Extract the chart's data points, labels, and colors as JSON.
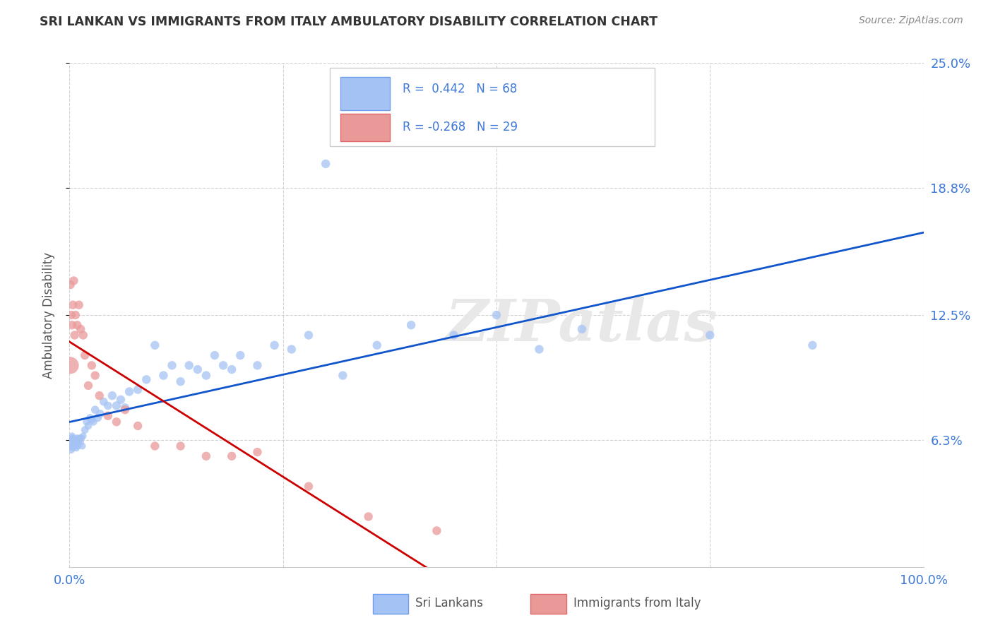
{
  "title": "SRI LANKAN VS IMMIGRANTS FROM ITALY AMBULATORY DISABILITY CORRELATION CHART",
  "source": "Source: ZipAtlas.com",
  "ylabel": "Ambulatory Disability",
  "xlim": [
    0,
    1.0
  ],
  "ylim": [
    0,
    0.25
  ],
  "yticks": [
    0.063,
    0.125,
    0.188,
    0.25
  ],
  "ytick_labels": [
    "6.3%",
    "12.5%",
    "18.8%",
    "25.0%"
  ],
  "background_color": "#ffffff",
  "watermark_text": "ZIPatlas",
  "sri_lanka": {
    "name": "Sri Lankans",
    "color": "#a4c2f4",
    "edge_color": "#6d9eeb",
    "line_color": "#1155cc",
    "R": 0.442,
    "N": 68,
    "x": [
      0.001,
      0.001,
      0.002,
      0.002,
      0.003,
      0.003,
      0.004,
      0.004,
      0.005,
      0.005,
      0.006,
      0.006,
      0.007,
      0.007,
      0.008,
      0.008,
      0.009,
      0.01,
      0.01,
      0.011,
      0.012,
      0.013,
      0.014,
      0.015,
      0.016,
      0.018,
      0.02,
      0.022,
      0.024,
      0.026,
      0.028,
      0.03,
      0.033,
      0.036,
      0.04,
      0.045,
      0.05,
      0.055,
      0.06,
      0.065,
      0.07,
      0.08,
      0.09,
      0.1,
      0.11,
      0.12,
      0.13,
      0.14,
      0.15,
      0.16,
      0.17,
      0.18,
      0.19,
      0.2,
      0.22,
      0.24,
      0.26,
      0.28,
      0.3,
      0.32,
      0.36,
      0.4,
      0.45,
      0.5,
      0.55,
      0.6,
      0.75,
      0.87
    ],
    "y": [
      0.063,
      0.06,
      0.064,
      0.058,
      0.065,
      0.06,
      0.063,
      0.059,
      0.062,
      0.064,
      0.061,
      0.063,
      0.06,
      0.062,
      0.063,
      0.059,
      0.064,
      0.062,
      0.06,
      0.063,
      0.064,
      0.062,
      0.064,
      0.06,
      0.065,
      0.068,
      0.072,
      0.07,
      0.074,
      0.073,
      0.072,
      0.078,
      0.074,
      0.076,
      0.082,
      0.08,
      0.085,
      0.08,
      0.083,
      0.079,
      0.087,
      0.088,
      0.093,
      0.11,
      0.095,
      0.1,
      0.092,
      0.1,
      0.098,
      0.095,
      0.105,
      0.1,
      0.098,
      0.105,
      0.1,
      0.11,
      0.108,
      0.115,
      0.2,
      0.095,
      0.11,
      0.12,
      0.115,
      0.125,
      0.108,
      0.118,
      0.115,
      0.11
    ],
    "sizes": [
      50,
      50,
      50,
      50,
      50,
      50,
      50,
      50,
      50,
      50,
      50,
      50,
      50,
      50,
      50,
      50,
      50,
      50,
      50,
      50,
      50,
      50,
      50,
      50,
      50,
      60,
      60,
      60,
      60,
      60,
      60,
      70,
      70,
      70,
      70,
      70,
      80,
      80,
      80,
      80,
      80,
      80,
      80,
      80,
      80,
      80,
      80,
      80,
      80,
      80,
      80,
      80,
      80,
      80,
      80,
      80,
      80,
      80,
      80,
      80,
      80,
      80,
      80,
      80,
      80,
      80,
      80,
      80
    ]
  },
  "italy": {
    "name": "Immigrants from Italy",
    "color": "#ea9999",
    "edge_color": "#e06666",
    "line_color": "#cc0000",
    "R": -0.268,
    "N": 29,
    "x": [
      0.001,
      0.001,
      0.002,
      0.003,
      0.004,
      0.005,
      0.006,
      0.007,
      0.009,
      0.011,
      0.013,
      0.016,
      0.018,
      0.022,
      0.026,
      0.03,
      0.035,
      0.045,
      0.055,
      0.065,
      0.08,
      0.1,
      0.13,
      0.16,
      0.19,
      0.22,
      0.28,
      0.35,
      0.43
    ],
    "y": [
      0.1,
      0.14,
      0.125,
      0.12,
      0.13,
      0.142,
      0.115,
      0.125,
      0.12,
      0.13,
      0.118,
      0.115,
      0.105,
      0.09,
      0.1,
      0.095,
      0.085,
      0.075,
      0.072,
      0.078,
      0.07,
      0.06,
      0.06,
      0.055,
      0.055,
      0.057,
      0.04,
      0.025,
      0.018
    ],
    "sizes": [
      300,
      80,
      80,
      80,
      80,
      80,
      80,
      80,
      80,
      80,
      80,
      80,
      80,
      80,
      80,
      80,
      80,
      80,
      80,
      80,
      80,
      80,
      80,
      80,
      80,
      80,
      80,
      80,
      80
    ],
    "line_x_solid_end": 0.43,
    "line_x_dash_end": 0.53
  }
}
